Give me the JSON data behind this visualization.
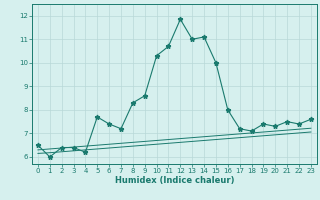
{
  "xlabel": "Humidex (Indice chaleur)",
  "x": [
    0,
    1,
    2,
    3,
    4,
    5,
    6,
    7,
    8,
    9,
    10,
    11,
    12,
    13,
    14,
    15,
    16,
    17,
    18,
    19,
    20,
    21,
    22,
    23
  ],
  "y_main": [
    6.5,
    6.0,
    6.4,
    6.4,
    6.2,
    7.7,
    7.4,
    7.2,
    8.3,
    8.6,
    10.3,
    10.7,
    11.85,
    11.0,
    11.1,
    10.0,
    8.0,
    7.2,
    7.1,
    7.4,
    7.3,
    7.5,
    7.4,
    7.6
  ],
  "y_flat1": [
    6.15,
    6.18,
    6.22,
    6.26,
    6.3,
    6.34,
    6.38,
    6.42,
    6.46,
    6.5,
    6.54,
    6.58,
    6.62,
    6.66,
    6.7,
    6.74,
    6.78,
    6.82,
    6.86,
    6.9,
    6.94,
    6.98,
    7.02,
    7.06
  ],
  "y_flat2": [
    6.3,
    6.34,
    6.38,
    6.42,
    6.46,
    6.5,
    6.54,
    6.58,
    6.62,
    6.66,
    6.7,
    6.74,
    6.78,
    6.82,
    6.86,
    6.9,
    6.94,
    6.98,
    7.02,
    7.06,
    7.1,
    7.14,
    7.18,
    7.22
  ],
  "line_color": "#1a7a6e",
  "background_color": "#d6f0ee",
  "grid_color": "#b8d8d8",
  "ylim": [
    5.7,
    12.5
  ],
  "xlim": [
    -0.5,
    23.5
  ],
  "yticks": [
    6,
    7,
    8,
    9,
    10,
    11,
    12
  ],
  "xticks": [
    0,
    1,
    2,
    3,
    4,
    5,
    6,
    7,
    8,
    9,
    10,
    11,
    12,
    13,
    14,
    15,
    16,
    17,
    18,
    19,
    20,
    21,
    22,
    23
  ],
  "tick_fontsize": 5.0,
  "xlabel_fontsize": 6.0
}
